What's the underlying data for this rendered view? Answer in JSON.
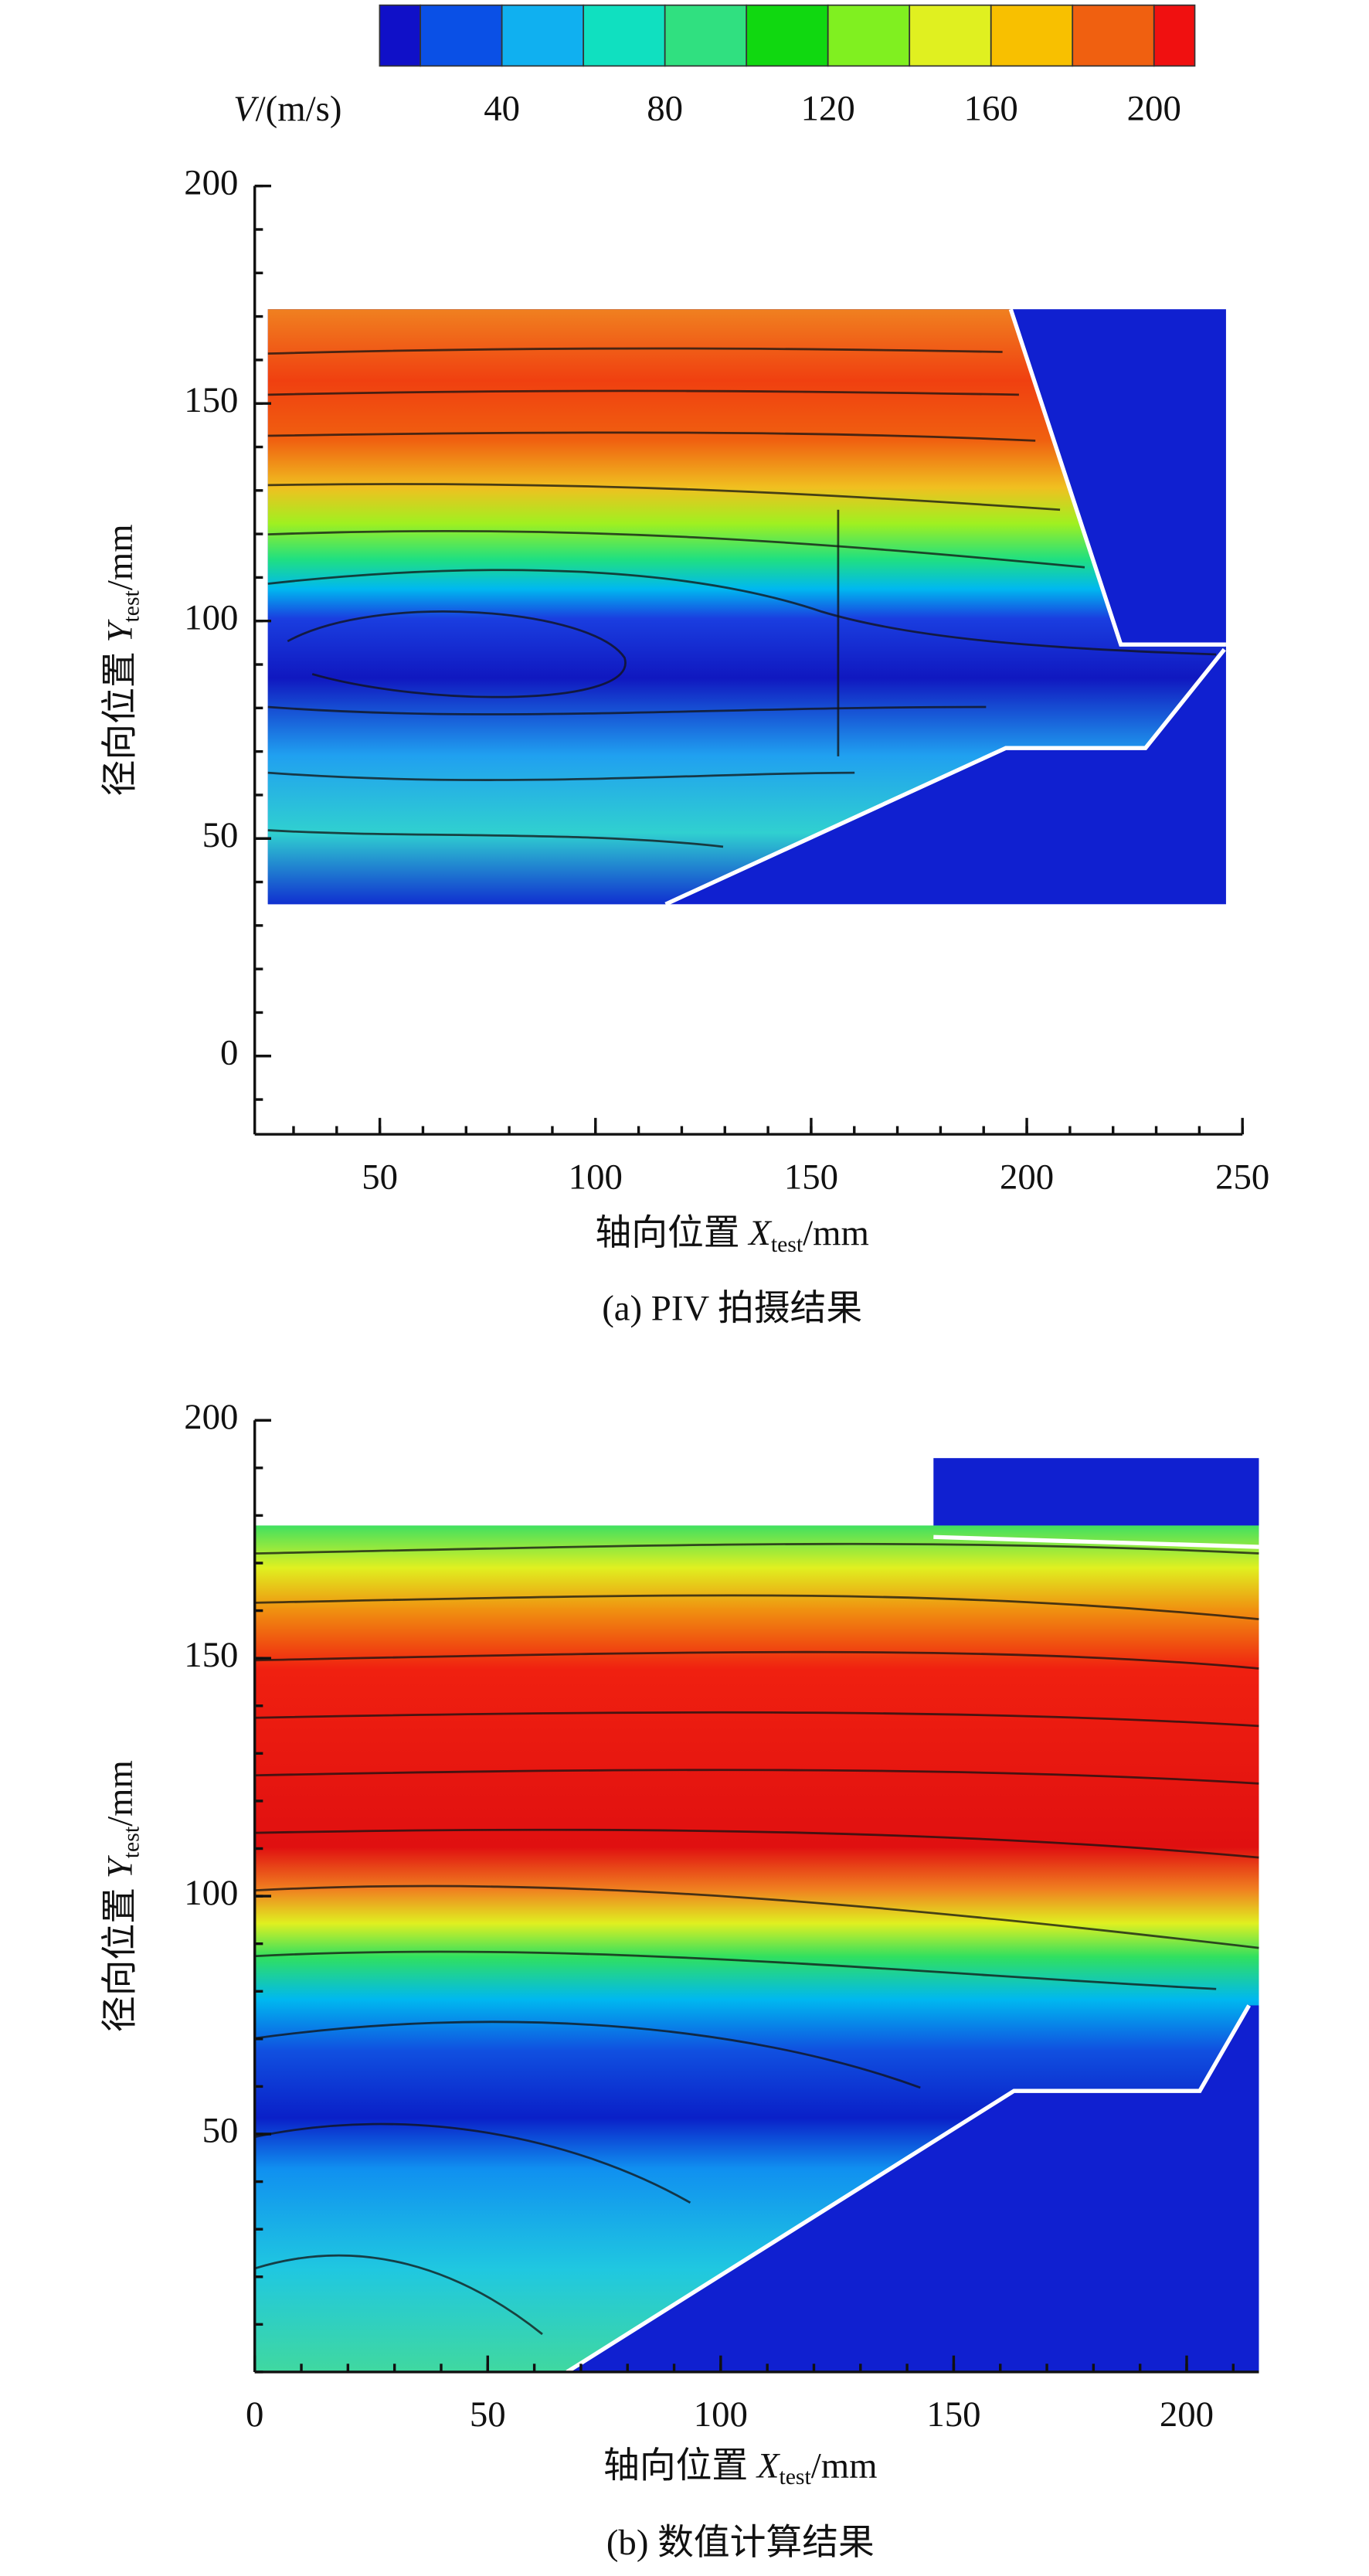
{
  "colorbar": {
    "label": {
      "var": "V",
      "unit": "/(m/s)"
    },
    "levels": [
      10,
      20,
      40,
      60,
      80,
      100,
      120,
      140,
      160,
      180,
      200,
      210
    ],
    "colors": [
      "#1010c8",
      "#0a50e6",
      "#10b0f0",
      "#10e0c0",
      "#30e080",
      "#10d810",
      "#80f020",
      "#e0f020",
      "#f8c000",
      "#f06010",
      "#f01010"
    ],
    "ticks": [
      40,
      80,
      120,
      160,
      200
    ]
  },
  "chart_data": [
    {
      "type": "contour",
      "caption": "(a) PIV 拍摄结果",
      "x_label": {
        "text": "轴向位置 ",
        "var": "X",
        "sub": "test",
        "unit": "/mm"
      },
      "y_label": {
        "text": "径向位置 ",
        "var": "Y",
        "sub": "test",
        "unit": "/mm"
      },
      "xlim": [
        21,
        250
      ],
      "ylim": [
        -18,
        200
      ],
      "xticks": [
        50,
        100,
        150,
        200,
        250
      ],
      "yticks": [
        0,
        50,
        100,
        150,
        200
      ],
      "minor_divisions": 5
    },
    {
      "type": "contour",
      "caption": "(b) 数值计算结果",
      "x_label": {
        "text": "轴向位置 ",
        "var": "X",
        "sub": "test",
        "unit": "/mm"
      },
      "y_label": {
        "text": "径向位置 ",
        "var": "Y",
        "sub": "test",
        "unit": "/mm"
      },
      "xlim": [
        0,
        215.5
      ],
      "ylim": [
        0,
        200
      ],
      "xticks": [
        0,
        50,
        100,
        150,
        200
      ],
      "yticks": [
        50,
        100,
        150,
        200
      ],
      "minor_divisions": 5
    }
  ]
}
